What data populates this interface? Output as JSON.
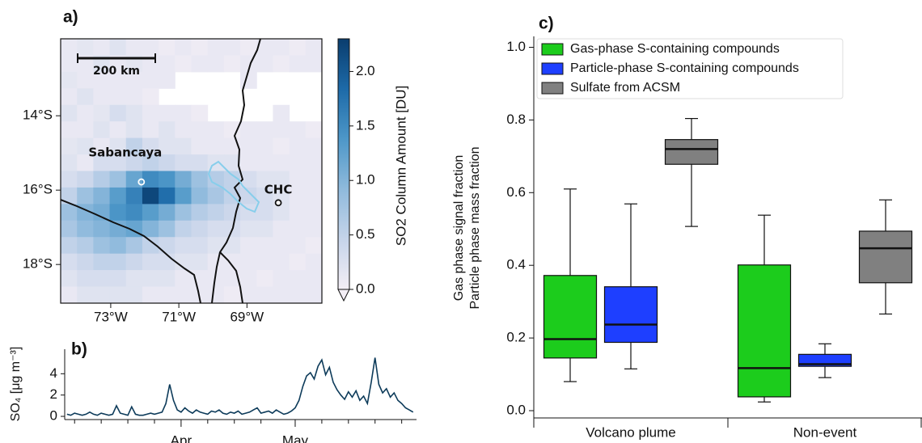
{
  "chart_data": [
    {
      "type": "heatmap",
      "panel": "a)",
      "xlim": [
        -74.47,
        -66.8
      ],
      "ylim": [
        -19.04,
        -11.93
      ],
      "xticks": [
        {
          "value": -73,
          "label": "73°W"
        },
        {
          "value": -71,
          "label": "71°W"
        },
        {
          "value": -69,
          "label": "69°W"
        }
      ],
      "yticks": [
        {
          "value": -14,
          "label": "14°S"
        },
        {
          "value": -16,
          "label": "16°S"
        },
        {
          "value": -18,
          "label": "18°S"
        }
      ],
      "clim": [
        0,
        2.3
      ],
      "colormap": [
        "#f3eef5",
        "#c6d4ea",
        "#8fbadc",
        "#4d97c8",
        "#1d6aa8",
        "#0a3d6e"
      ],
      "colorbar_label": "SO2 Column Amount [DU]",
      "colorbar_ticks": [
        {
          "value": 0,
          "label": "0.0"
        },
        0.5,
        {
          "value": 1,
          "label": "1.0"
        },
        1.5,
        {
          "value": 2,
          "label": "2.0"
        }
      ],
      "scale_bar": "200 km",
      "sites": [
        {
          "name": "Sabancaya",
          "lon": -72.1,
          "lat": -15.78
        },
        {
          "name": "CHC",
          "lon": -68.08,
          "lat": -16.34
        }
      ],
      "so2": [
        [
          0.1,
          0.15,
          0.1,
          0.2,
          0.1,
          0.1,
          0.05,
          0.1,
          0.05,
          0.1,
          0.1,
          0.05,
          0.1,
          0.1,
          0.05,
          0.1
        ],
        [
          0.1,
          0.1,
          0.2,
          0.1,
          0.15,
          0.1,
          0.1,
          0.05,
          0.1,
          0.1,
          0.05,
          0.1,
          0.1,
          0.05,
          0.1,
          0.1
        ],
        [
          0.15,
          0.1,
          0.1,
          0.1,
          0.1,
          0.1,
          0.1,
          null,
          null,
          null,
          null,
          0.1,
          null,
          null,
          null,
          null
        ],
        [
          0.1,
          0.2,
          0.1,
          0.1,
          0.1,
          0.05,
          null,
          null,
          null,
          null,
          null,
          null,
          null,
          null,
          null,
          null
        ],
        [
          0.2,
          0.1,
          0.15,
          0.3,
          0.2,
          0.1,
          0.1,
          0.1,
          0.05,
          null,
          null,
          null,
          null,
          0.1,
          null,
          null
        ],
        [
          0.1,
          0.1,
          0.2,
          0.1,
          0.2,
          0.1,
          0.2,
          0.1,
          0.1,
          0.1,
          0.05,
          0.1,
          0.1,
          0.1,
          0.1,
          0.05
        ],
        [
          0.15,
          0.2,
          0.1,
          0.2,
          0.5,
          0.3,
          0.2,
          0.2,
          0.1,
          0.1,
          0.1,
          0.1,
          0.1,
          0.05,
          0.1,
          0.1
        ],
        [
          0.2,
          0.1,
          0.3,
          0.3,
          0.4,
          0.5,
          0.4,
          0.3,
          0.3,
          0.2,
          0.2,
          0.1,
          0.1,
          0.1,
          0.1,
          0.1
        ],
        [
          0.3,
          0.4,
          0.6,
          0.8,
          1.2,
          1.5,
          1.4,
          1.1,
          0.8,
          0.6,
          0.5,
          0.3,
          0.2,
          0.2,
          0.1,
          0.1
        ],
        [
          0.5,
          0.8,
          1.0,
          1.3,
          1.6,
          2.2,
          1.8,
          1.3,
          0.9,
          0.7,
          0.5,
          0.4,
          0.3,
          0.2,
          0.1,
          0.1
        ],
        [
          0.8,
          1.0,
          1.1,
          1.4,
          1.5,
          1.3,
          1.1,
          0.8,
          0.6,
          0.5,
          0.4,
          0.3,
          0.3,
          0.2,
          0.1,
          0.1
        ],
        [
          0.7,
          0.9,
          1.0,
          1.1,
          1.2,
          1.0,
          0.8,
          0.5,
          0.4,
          0.3,
          0.3,
          0.2,
          0.2,
          0.1,
          0.1,
          0.1
        ],
        [
          0.5,
          0.6,
          0.8,
          0.9,
          0.7,
          0.5,
          0.4,
          0.3,
          0.3,
          0.2,
          0.2,
          0.1,
          0.1,
          0.1,
          0.1,
          0.05
        ],
        [
          0.3,
          0.4,
          0.5,
          0.5,
          0.4,
          0.3,
          0.3,
          0.2,
          0.2,
          0.1,
          0.1,
          0.1,
          0.1,
          0.1,
          0.05,
          0.1
        ],
        [
          0.2,
          0.3,
          0.3,
          0.3,
          0.2,
          0.2,
          0.2,
          0.1,
          0.1,
          0.1,
          0.1,
          0.1,
          0.05,
          0.1,
          0.1,
          0.1
        ],
        [
          0.1,
          0.2,
          0.2,
          0.2,
          0.2,
          0.1,
          0.1,
          0.1,
          0.1,
          0.1,
          0.05,
          0.1,
          0.1,
          0.1,
          0.1,
          0.1
        ]
      ]
    },
    {
      "type": "line",
      "panel": "b)",
      "ylabel": "SO₄ [μg m⁻³]",
      "xlim": [
        -30.6,
        61.9
      ],
      "ylim": [
        -0.3,
        6.3
      ],
      "yticks": [
        0,
        2,
        4
      ],
      "xticks": [
        {
          "value": 0,
          "label": "Apr"
        },
        {
          "value": 30,
          "label": "May"
        }
      ],
      "xminorticks": [
        -28,
        -21,
        -14,
        -7,
        7,
        14,
        21,
        37,
        44,
        51,
        58
      ],
      "x": [
        -30,
        -29,
        -28,
        -27,
        -26,
        -25,
        -24,
        -23,
        -22,
        -21,
        -20,
        -19,
        -18,
        -17,
        -16,
        -15,
        -14,
        -13,
        -12,
        -11,
        -10,
        -9,
        -8,
        -7,
        -6,
        -5,
        -4,
        -3,
        -2,
        -1,
        0,
        1,
        2,
        3,
        4,
        5,
        6,
        7,
        8,
        9,
        10,
        11,
        12,
        13,
        14,
        15,
        16,
        17,
        18,
        19,
        20,
        21,
        22,
        23,
        24,
        25,
        26,
        27,
        28,
        29,
        30,
        31,
        32,
        33,
        34,
        35,
        36,
        37,
        38,
        39,
        40,
        41,
        42,
        43,
        44,
        45,
        46,
        47,
        48,
        49,
        50,
        51,
        52,
        53,
        54,
        55,
        56,
        57,
        58,
        59,
        60,
        61
      ],
      "series": [
        {
          "color": "#0d3b5a",
          "values": [
            0.2,
            0.1,
            0.3,
            0.2,
            0.1,
            0.2,
            0.4,
            0.2,
            0.1,
            0.3,
            0.2,
            0.1,
            0.2,
            1.0,
            0.3,
            0.2,
            0.1,
            0.9,
            0.2,
            0.1,
            0.1,
            0.2,
            0.3,
            0.2,
            0.3,
            0.4,
            1.2,
            3.0,
            1.5,
            0.6,
            0.4,
            0.8,
            0.5,
            0.3,
            0.6,
            0.4,
            0.3,
            0.2,
            0.5,
            0.4,
            0.6,
            0.3,
            0.2,
            0.4,
            0.3,
            0.5,
            0.2,
            0.3,
            0.4,
            0.6,
            0.8,
            0.3,
            0.4,
            0.5,
            0.3,
            0.6,
            0.4,
            0.2,
            0.3,
            0.5,
            0.8,
            1.5,
            2.8,
            3.8,
            4.1,
            3.5,
            4.7,
            5.3,
            3.9,
            4.6,
            3.2,
            2.5,
            2.0,
            1.6,
            2.3,
            1.8,
            2.4,
            1.5,
            1.9,
            1.2,
            3.2,
            5.5,
            3.0,
            2.2,
            2.6,
            1.8,
            2.2,
            1.5,
            1.2,
            0.8,
            0.6,
            0.4
          ]
        }
      ]
    },
    {
      "type": "box",
      "panel": "c)",
      "ylabel": [
        "Gas phase signal fraction",
        "Particle phase mass fraction"
      ],
      "categories": [
        "Volcano plume",
        "Non-event"
      ],
      "ylim": [
        -0.02,
        1.03
      ],
      "yticks": [
        {
          "value": 0,
          "label": "0.0"
        },
        0.2,
        0.4,
        0.6,
        0.8,
        {
          "value": 1,
          "label": "1.0"
        }
      ],
      "legend": "upper left",
      "series": [
        {
          "name": "Gas-phase S-containing compounds",
          "color": "#1ccc1c",
          "min": [
            0.08,
            0.024
          ],
          "q1": [
            0.145,
            0.038
          ],
          "median": [
            0.197,
            0.117
          ],
          "q3": [
            0.372,
            0.401
          ],
          "max": [
            0.61,
            0.538
          ]
        },
        {
          "name": "Particle-phase S-containing compounds",
          "color": "#1e3fff",
          "min": [
            0.115,
            0.091
          ],
          "q1": [
            0.188,
            0.122
          ],
          "median": [
            0.237,
            0.128
          ],
          "q3": [
            0.341,
            0.155
          ],
          "max": [
            0.569,
            0.184
          ]
        },
        {
          "name": "Sulfate from ACSM",
          "color": "#808080",
          "min": [
            0.507,
            0.266
          ],
          "q1": [
            0.678,
            0.352
          ],
          "median": [
            0.72,
            0.447
          ],
          "q3": [
            0.746,
            0.494
          ],
          "max": [
            0.804,
            0.58
          ]
        }
      ]
    }
  ]
}
